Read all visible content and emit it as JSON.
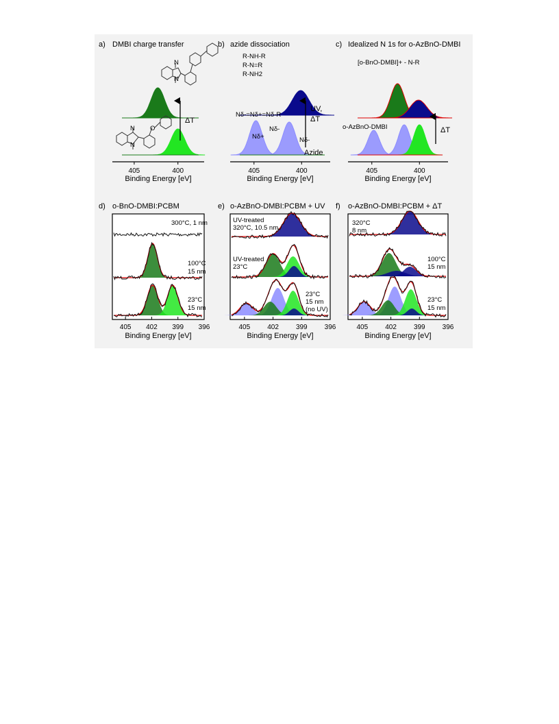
{
  "panels": {
    "a": {
      "letter": "a)",
      "title": "DMBI charge transfer",
      "delta": "ΔT"
    },
    "b": {
      "letter": "b)",
      "title": "azide dissociation",
      "species": [
        "R-NH-R",
        "R-N=R",
        "R-NH2"
      ],
      "azide_formula": "Nδ-=Nδ+=Nδ-R",
      "n_labels": [
        "Nδ+",
        "Nδ-",
        "Nδ-"
      ],
      "arrow_label_1": "UV,",
      "arrow_label_2": "ΔT",
      "azide_label": "Azide"
    },
    "c": {
      "letter": "c)",
      "title": "Idealized N 1s for o-AzBnO-DMBI",
      "top_label": "[o-BnO-DMBI]+ - N-R",
      "bottom_label": "o-AzBnO-DMBI",
      "delta": "ΔT"
    },
    "d": {
      "letter": "d)",
      "title": "o-BnO-DMBI:PCBM",
      "traces": [
        "300°C, 1 nm",
        "100°C",
        "15 nm",
        "23°C",
        "15 nm"
      ]
    },
    "e": {
      "letter": "e)",
      "title": "o-AzBnO-DMBI:PCBM + UV",
      "traces": [
        "UV-treated",
        "320°C, 10.5 nm",
        "UV-treated",
        "23°C",
        "23°C",
        "15 nm",
        "(no UV)"
      ]
    },
    "f": {
      "letter": "f)",
      "title": "o-AzBnO-DMBI:PCBM + ΔT",
      "traces": [
        "320°C",
        "8 nm",
        "100°C",
        "15 nm",
        "23°C",
        "15 nm"
      ]
    }
  },
  "axis": {
    "xlabel": "Binding Energy [eV]",
    "top_ticks": [
      "405",
      "400"
    ],
    "bottom_ticks": [
      "405",
      "402",
      "399",
      "396"
    ]
  },
  "chart_data": [
    {
      "panel": "a",
      "type": "area",
      "xlabel": "Binding Energy [eV]",
      "xlim": [
        407.5,
        397
      ],
      "reversed": true,
      "series": [
        {
          "name": "",
          "color": "#1a7a1a",
          "center": 402.3,
          "fwhm": 1.4
        },
        {
          "name": "",
          "color": "#22e622",
          "center": 400.0,
          "fwhm": 1.4
        }
      ]
    },
    {
      "panel": "b",
      "type": "area",
      "xlabel": "Binding Energy [eV]",
      "xlim": [
        407.5,
        397
      ],
      "reversed": true,
      "series": [
        {
          "name": "",
          "color": "#0a0a8c",
          "center": 400.1,
          "fwhm": 1.6
        },
        {
          "name": "",
          "color": "#8c8cff",
          "center": 404.8,
          "fwhm": 1.2
        },
        {
          "name": "",
          "color": "#8c8cff",
          "center": 401.3,
          "fwhm": 1.2
        }
      ]
    },
    {
      "panel": "c",
      "type": "area",
      "xlabel": "Binding Energy [eV]",
      "xlim": [
        407.5,
        397
      ],
      "reversed": true,
      "series": [
        {
          "name": "",
          "color": "#1a7a1a",
          "center": 402.3,
          "fwhm": 1.3
        },
        {
          "name": "",
          "color": "#0a0a8c",
          "center": 400.1,
          "fwhm": 1.6
        },
        {
          "name": "",
          "color": "#8c8cff",
          "center": 404.8,
          "fwhm": 1.1
        },
        {
          "name": "",
          "color": "#8c8cff",
          "center": 401.6,
          "fwhm": 1.1
        },
        {
          "name": "",
          "color": "#22e622",
          "center": 400.0,
          "fwhm": 1.1
        }
      ]
    },
    {
      "panel": "d",
      "type": "line",
      "xlabel": "Binding Energy [eV]",
      "xlim": [
        406.5,
        396
      ],
      "reversed": true,
      "traces": [
        {
          "label": "300°C, 1 nm",
          "peaks": []
        },
        {
          "label": "100°C 15 nm",
          "peaks": [
            {
              "center": 401.9,
              "fwhm": 0.9,
              "color": "#1a7a1a"
            }
          ]
        },
        {
          "label": "23°C 15 nm",
          "peaks": [
            {
              "center": 401.9,
              "fwhm": 1.0,
              "color": "#1a7a1a"
            },
            {
              "center": 399.6,
              "fwhm": 1.0,
              "color": "#22e622"
            }
          ]
        }
      ]
    },
    {
      "panel": "e",
      "type": "line",
      "xlabel": "Binding Energy [eV]",
      "xlim": [
        406.5,
        396
      ],
      "reversed": true,
      "traces": [
        {
          "label": "UV-treated 320°C, 10.5 nm",
          "peaks": [
            {
              "center": 400.0,
              "fwhm": 1.5,
              "color": "#0a0a8c"
            }
          ]
        },
        {
          "label": "UV-treated 23°C",
          "peaks": [
            {
              "center": 402.0,
              "fwhm": 1.2,
              "color": "#1a7a1a"
            },
            {
              "center": 399.9,
              "fwhm": 1.1,
              "color": "#22e622"
            },
            {
              "center": 399.8,
              "fwhm": 0.9,
              "color": "#0a0a8c"
            }
          ]
        },
        {
          "label": "23°C 15 nm (no UV)",
          "peaks": [
            {
              "center": 404.8,
              "fwhm": 1.1,
              "color": "#8c8cff"
            },
            {
              "center": 401.5,
              "fwhm": 1.1,
              "color": "#8c8cff"
            },
            {
              "center": 402.3,
              "fwhm": 1.1,
              "color": "#1a7a1a"
            },
            {
              "center": 399.9,
              "fwhm": 1.0,
              "color": "#22e622"
            },
            {
              "center": 399.8,
              "fwhm": 0.8,
              "color": "#0a0a8c"
            }
          ]
        }
      ]
    },
    {
      "panel": "f",
      "type": "line",
      "xlabel": "Binding Energy [eV]",
      "xlim": [
        406.5,
        396
      ],
      "reversed": true,
      "traces": [
        {
          "label": "320°C 8 nm",
          "peaks": [
            {
              "center": 400.0,
              "fwhm": 1.4,
              "color": "#0a0a8c"
            }
          ]
        },
        {
          "label": "100°C 15 nm",
          "peaks": [
            {
              "center": 402.2,
              "fwhm": 1.2,
              "color": "#1a7a1a"
            },
            {
              "center": 400.0,
              "fwhm": 1.1,
              "color": "#0a0a8c"
            },
            {
              "center": 401.4,
              "fwhm": 1.6,
              "color": "#0a0a8c"
            }
          ]
        },
        {
          "label": "23°C 15 nm",
          "peaks": [
            {
              "center": 404.8,
              "fwhm": 1.1,
              "color": "#8c8cff"
            },
            {
              "center": 401.6,
              "fwhm": 1.1,
              "color": "#8c8cff"
            },
            {
              "center": 402.3,
              "fwhm": 1.1,
              "color": "#1a7a1a"
            },
            {
              "center": 399.9,
              "fwhm": 1.0,
              "color": "#22e622"
            },
            {
              "center": 399.8,
              "fwhm": 0.8,
              "color": "#0a0a8c"
            }
          ]
        }
      ]
    }
  ]
}
